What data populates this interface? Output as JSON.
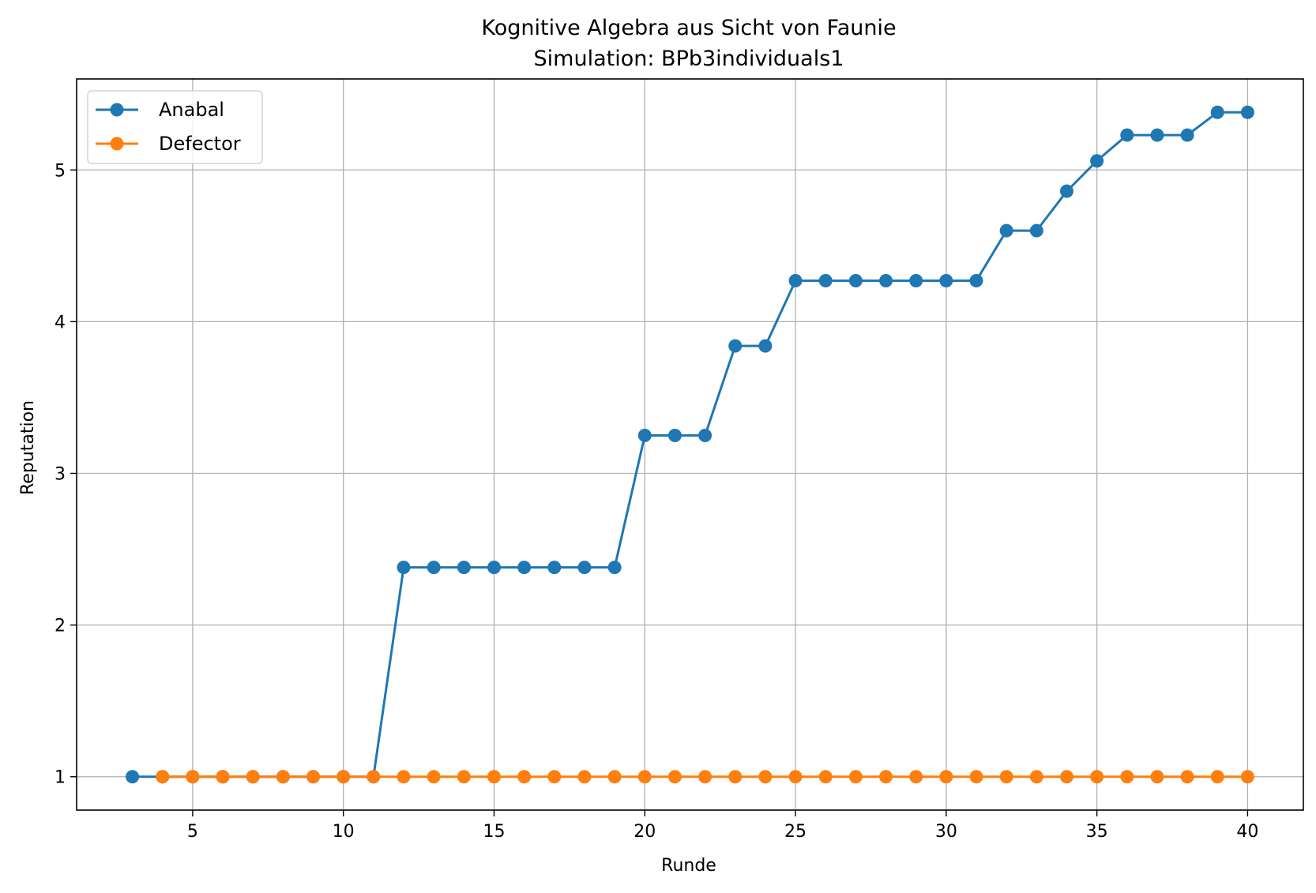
{
  "chart_data": {
    "type": "line",
    "title": "Kognitive Algebra aus Sicht von Faunie",
    "subtitle": "Simulation: BPb3individuals1",
    "xlabel": "Runde",
    "ylabel": "Reputation",
    "xlim": [
      1.15,
      41.85
    ],
    "ylim": [
      0.78,
      5.6
    ],
    "xticks": [
      5,
      10,
      15,
      20,
      25,
      30,
      35,
      40
    ],
    "yticks": [
      1,
      2,
      3,
      4,
      5
    ],
    "grid": true,
    "legend_position": "top-left",
    "series": [
      {
        "name": "Anabal",
        "color": "#1f77b4",
        "x": [
          3,
          4,
          5,
          6,
          7,
          8,
          9,
          10,
          11,
          12,
          13,
          14,
          15,
          16,
          17,
          18,
          19,
          20,
          21,
          22,
          23,
          24,
          25,
          26,
          27,
          28,
          29,
          30,
          31,
          32,
          33,
          34,
          35,
          36,
          37,
          38,
          39,
          40
        ],
        "y": [
          1,
          1,
          1,
          1,
          1,
          1,
          1,
          1,
          1,
          2.38,
          2.38,
          2.38,
          2.38,
          2.38,
          2.38,
          2.38,
          2.38,
          3.25,
          3.25,
          3.25,
          3.84,
          3.84,
          4.27,
          4.27,
          4.27,
          4.27,
          4.27,
          4.27,
          4.27,
          4.6,
          4.6,
          4.86,
          5.06,
          5.23,
          5.23,
          5.23,
          5.38,
          5.38
        ]
      },
      {
        "name": "Defector",
        "color": "#ff7f0e",
        "x": [
          4,
          5,
          6,
          7,
          8,
          9,
          10,
          11,
          12,
          13,
          14,
          15,
          16,
          17,
          18,
          19,
          20,
          21,
          22,
          23,
          24,
          25,
          26,
          27,
          28,
          29,
          30,
          31,
          32,
          33,
          34,
          35,
          36,
          37,
          38,
          39,
          40
        ],
        "y": [
          1,
          1,
          1,
          1,
          1,
          1,
          1,
          1,
          1,
          1,
          1,
          1,
          1,
          1,
          1,
          1,
          1,
          1,
          1,
          1,
          1,
          1,
          1,
          1,
          1,
          1,
          1,
          1,
          1,
          1,
          1,
          1,
          1,
          1,
          1,
          1,
          1
        ]
      }
    ]
  }
}
